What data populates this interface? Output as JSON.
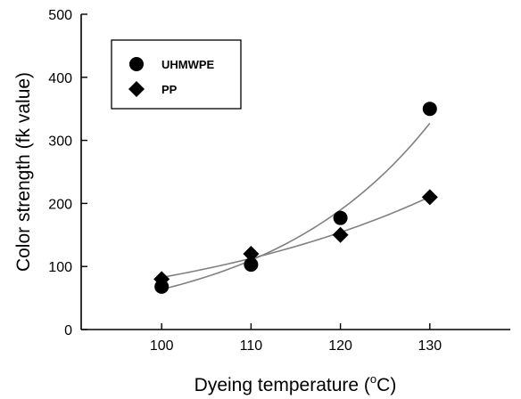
{
  "chart_data": {
    "type": "scatter",
    "xlabel": "Dyeing temperature",
    "xlabel_unit_deg": "o",
    "xlabel_unit_close": "C)",
    "ylabel": "Color strength (fk value)",
    "xlim": [
      91,
      139
    ],
    "ylim": [
      0,
      500
    ],
    "x_ticks": [
      100,
      110,
      120,
      130
    ],
    "y_ticks": [
      0,
      100,
      200,
      300,
      400,
      500
    ],
    "grid": false,
    "legend_position": "top-left",
    "series": [
      {
        "name": "UHMWPE",
        "marker": "circle",
        "x": [
          100,
          110,
          120,
          130
        ],
        "y": [
          68,
          103,
          177,
          350
        ],
        "fit": "exponential"
      },
      {
        "name": "PP",
        "marker": "diamond",
        "x": [
          100,
          110,
          120,
          130
        ],
        "y": [
          80,
          120,
          150,
          210
        ],
        "fit": "exponential"
      }
    ],
    "colors": {
      "markers": "#000000",
      "fit_line": "#808080",
      "axes": "#000000"
    }
  }
}
